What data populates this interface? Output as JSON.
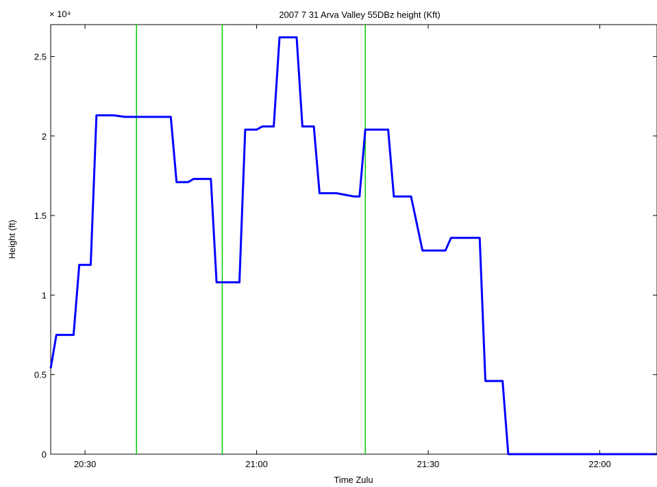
{
  "chart_data": {
    "type": "line",
    "title": "2007    7    31  Arva Valley 55DBz height (Kft)",
    "xlabel": "Time Zulu",
    "ylabel": "Height (ft)",
    "y_exponent_label": "× 10⁴",
    "xlim": [
      "20:24",
      "22:10"
    ],
    "ylim": [
      0,
      27000
    ],
    "x_ticks": [
      "20:30",
      "21:00",
      "21:30",
      "22:00"
    ],
    "y_ticks": [
      "0",
      "0.5",
      "1",
      "1.5",
      "2",
      "2.5"
    ],
    "y_tick_values": [
      0,
      5000,
      10000,
      15000,
      20000,
      25000
    ],
    "grid": false,
    "series": [
      {
        "color": "#0000ff",
        "points": [
          [
            "20:24",
            5400
          ],
          [
            "20:25",
            7500
          ],
          [
            "20:27",
            7500
          ],
          [
            "20:28",
            7500
          ],
          [
            "20:29",
            11900
          ],
          [
            "20:31",
            11900
          ],
          [
            "20:32",
            21300
          ],
          [
            "20:35",
            21300
          ],
          [
            "20:37",
            21200
          ],
          [
            "20:40",
            21200
          ],
          [
            "20:43",
            21200
          ],
          [
            "20:45",
            21200
          ],
          [
            "20:46",
            17100
          ],
          [
            "20:48",
            17100
          ],
          [
            "20:49",
            17300
          ],
          [
            "20:52",
            17300
          ],
          [
            "20:53",
            10800
          ],
          [
            "20:57",
            10800
          ],
          [
            "20:58",
            20400
          ],
          [
            "21:00",
            20400
          ],
          [
            "21:01",
            20600
          ],
          [
            "21:03",
            20600
          ],
          [
            "21:04",
            26200
          ],
          [
            "21:07",
            26200
          ],
          [
            "21:08",
            20600
          ],
          [
            "21:10",
            20600
          ],
          [
            "21:11",
            16400
          ],
          [
            "21:14",
            16400
          ],
          [
            "21:17",
            16200
          ],
          [
            "21:18",
            16200
          ],
          [
            "21:19",
            20400
          ],
          [
            "21:23",
            20400
          ],
          [
            "21:24",
            16200
          ],
          [
            "21:27",
            16200
          ],
          [
            "21:29",
            12800
          ],
          [
            "21:31",
            12800
          ],
          [
            "21:33",
            12800
          ],
          [
            "21:34",
            13600
          ],
          [
            "21:39",
            13600
          ],
          [
            "21:40",
            4600
          ],
          [
            "21:43",
            4600
          ],
          [
            "21:44",
            0
          ],
          [
            "22:10",
            0
          ]
        ]
      }
    ],
    "vertical_markers": {
      "color": "#00cc00",
      "x": [
        "20:39",
        "20:54",
        "21:19"
      ]
    }
  }
}
